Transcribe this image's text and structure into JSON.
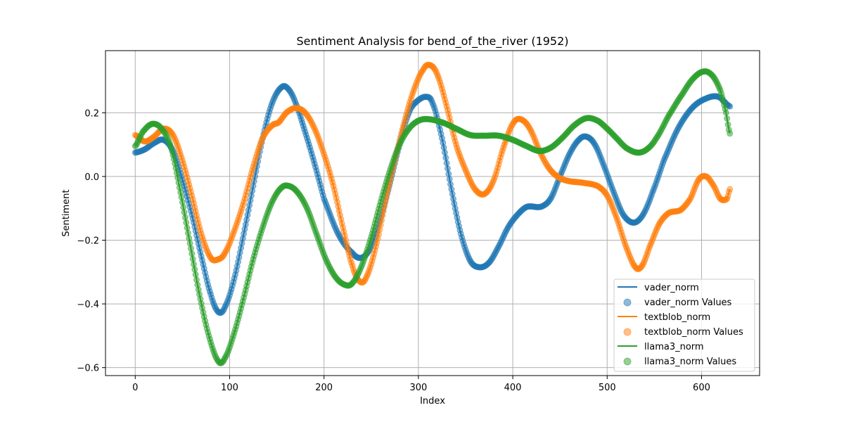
{
  "chart_data": {
    "type": "line",
    "title": "Sentiment Analysis for bend_of_the_river (1952)",
    "xlabel": "Index",
    "ylabel": "Sentiment",
    "xlim": [
      -31.5,
      661.5
    ],
    "ylim": [
      -0.625,
      0.395
    ],
    "xticks": [
      0,
      100,
      200,
      300,
      400,
      500,
      600
    ],
    "yticks": [
      -0.6,
      -0.4,
      -0.2,
      0.0,
      0.2
    ],
    "ytick_labels": [
      "−0.6",
      "−0.4",
      "−0.2",
      "0.0",
      "0.2"
    ],
    "grid": true,
    "legend_position": "lower right",
    "x_max": 630,
    "series": [
      {
        "name": "vader_norm",
        "scatter_name": "vader_norm Values",
        "color": "#1f77b4",
        "points": [
          [
            0,
            0.075
          ],
          [
            10,
            0.085
          ],
          [
            20,
            0.105
          ],
          [
            30,
            0.115
          ],
          [
            40,
            0.08
          ],
          [
            50,
            -0.01
          ],
          [
            60,
            -0.12
          ],
          [
            70,
            -0.25
          ],
          [
            80,
            -0.37
          ],
          [
            88,
            -0.425
          ],
          [
            95,
            -0.41
          ],
          [
            105,
            -0.32
          ],
          [
            115,
            -0.18
          ],
          [
            125,
            -0.03
          ],
          [
            135,
            0.12
          ],
          [
            145,
            0.23
          ],
          [
            155,
            0.28
          ],
          [
            162,
            0.275
          ],
          [
            170,
            0.23
          ],
          [
            180,
            0.14
          ],
          [
            190,
            0.04
          ],
          [
            200,
            -0.07
          ],
          [
            215,
            -0.18
          ],
          [
            230,
            -0.24
          ],
          [
            240,
            -0.255
          ],
          [
            250,
            -0.22
          ],
          [
            260,
            -0.13
          ],
          [
            270,
            -0.02
          ],
          [
            280,
            0.1
          ],
          [
            290,
            0.2
          ],
          [
            298,
            0.235
          ],
          [
            308,
            0.25
          ],
          [
            315,
            0.23
          ],
          [
            325,
            0.12
          ],
          [
            335,
            -0.04
          ],
          [
            345,
            -0.18
          ],
          [
            355,
            -0.265
          ],
          [
            365,
            -0.285
          ],
          [
            375,
            -0.27
          ],
          [
            385,
            -0.22
          ],
          [
            395,
            -0.16
          ],
          [
            405,
            -0.12
          ],
          [
            415,
            -0.095
          ],
          [
            430,
            -0.095
          ],
          [
            440,
            -0.07
          ],
          [
            450,
            0.0
          ],
          [
            460,
            0.07
          ],
          [
            470,
            0.115
          ],
          [
            478,
            0.125
          ],
          [
            487,
            0.1
          ],
          [
            497,
            0.03
          ],
          [
            507,
            -0.05
          ],
          [
            517,
            -0.12
          ],
          [
            528,
            -0.145
          ],
          [
            538,
            -0.12
          ],
          [
            548,
            -0.05
          ],
          [
            560,
            0.05
          ],
          [
            575,
            0.15
          ],
          [
            590,
            0.215
          ],
          [
            605,
            0.245
          ],
          [
            618,
            0.25
          ],
          [
            630,
            0.22
          ]
        ]
      },
      {
        "name": "textblob_norm",
        "scatter_name": "textblob_norm Values",
        "color": "#ff7f0e",
        "points": [
          [
            0,
            0.13
          ],
          [
            10,
            0.11
          ],
          [
            20,
            0.125
          ],
          [
            30,
            0.15
          ],
          [
            40,
            0.13
          ],
          [
            50,
            0.05
          ],
          [
            60,
            -0.06
          ],
          [
            70,
            -0.18
          ],
          [
            80,
            -0.255
          ],
          [
            88,
            -0.26
          ],
          [
            95,
            -0.24
          ],
          [
            105,
            -0.17
          ],
          [
            115,
            -0.08
          ],
          [
            125,
            0.03
          ],
          [
            135,
            0.12
          ],
          [
            145,
            0.16
          ],
          [
            152,
            0.17
          ],
          [
            160,
            0.2
          ],
          [
            170,
            0.215
          ],
          [
            180,
            0.2
          ],
          [
            190,
            0.15
          ],
          [
            200,
            0.07
          ],
          [
            210,
            -0.03
          ],
          [
            220,
            -0.16
          ],
          [
            230,
            -0.28
          ],
          [
            238,
            -0.33
          ],
          [
            245,
            -0.315
          ],
          [
            255,
            -0.22
          ],
          [
            265,
            -0.08
          ],
          [
            275,
            0.05
          ],
          [
            285,
            0.17
          ],
          [
            295,
            0.27
          ],
          [
            305,
            0.335
          ],
          [
            312,
            0.35
          ],
          [
            320,
            0.32
          ],
          [
            330,
            0.22
          ],
          [
            340,
            0.1
          ],
          [
            350,
            0.02
          ],
          [
            360,
            -0.04
          ],
          [
            370,
            -0.055
          ],
          [
            380,
            -0.01
          ],
          [
            390,
            0.09
          ],
          [
            400,
            0.165
          ],
          [
            408,
            0.18
          ],
          [
            418,
            0.15
          ],
          [
            430,
            0.07
          ],
          [
            440,
            0.02
          ],
          [
            450,
            -0.005
          ],
          [
            460,
            -0.015
          ],
          [
            475,
            -0.02
          ],
          [
            490,
            -0.03
          ],
          [
            500,
            -0.06
          ],
          [
            510,
            -0.13
          ],
          [
            520,
            -0.22
          ],
          [
            530,
            -0.285
          ],
          [
            537,
            -0.28
          ],
          [
            545,
            -0.22
          ],
          [
            555,
            -0.15
          ],
          [
            565,
            -0.115
          ],
          [
            578,
            -0.105
          ],
          [
            588,
            -0.07
          ],
          [
            597,
            -0.01
          ],
          [
            605,
            0.0
          ],
          [
            613,
            -0.03
          ],
          [
            620,
            -0.07
          ],
          [
            627,
            -0.07
          ],
          [
            630,
            -0.04
          ]
        ]
      },
      {
        "name": "llama3_norm",
        "scatter_name": "llama3_norm Values",
        "color": "#2ca02c",
        "points": [
          [
            0,
            0.095
          ],
          [
            8,
            0.14
          ],
          [
            18,
            0.165
          ],
          [
            28,
            0.15
          ],
          [
            38,
            0.09
          ],
          [
            48,
            -0.05
          ],
          [
            58,
            -0.21
          ],
          [
            68,
            -0.37
          ],
          [
            78,
            -0.5
          ],
          [
            88,
            -0.58
          ],
          [
            95,
            -0.57
          ],
          [
            105,
            -0.49
          ],
          [
            115,
            -0.38
          ],
          [
            125,
            -0.26
          ],
          [
            135,
            -0.16
          ],
          [
            145,
            -0.08
          ],
          [
            155,
            -0.035
          ],
          [
            163,
            -0.03
          ],
          [
            172,
            -0.05
          ],
          [
            182,
            -0.1
          ],
          [
            192,
            -0.18
          ],
          [
            202,
            -0.26
          ],
          [
            212,
            -0.315
          ],
          [
            222,
            -0.34
          ],
          [
            230,
            -0.335
          ],
          [
            240,
            -0.28
          ],
          [
            250,
            -0.19
          ],
          [
            260,
            -0.08
          ],
          [
            270,
            0.02
          ],
          [
            280,
            0.1
          ],
          [
            290,
            0.15
          ],
          [
            300,
            0.175
          ],
          [
            310,
            0.18
          ],
          [
            325,
            0.17
          ],
          [
            340,
            0.15
          ],
          [
            355,
            0.13
          ],
          [
            370,
            0.128
          ],
          [
            385,
            0.128
          ],
          [
            400,
            0.115
          ],
          [
            415,
            0.095
          ],
          [
            428,
            0.08
          ],
          [
            440,
            0.09
          ],
          [
            452,
            0.12
          ],
          [
            465,
            0.16
          ],
          [
            478,
            0.183
          ],
          [
            490,
            0.175
          ],
          [
            500,
            0.15
          ],
          [
            510,
            0.12
          ],
          [
            520,
            0.09
          ],
          [
            532,
            0.075
          ],
          [
            542,
            0.085
          ],
          [
            552,
            0.12
          ],
          [
            565,
            0.19
          ],
          [
            580,
            0.26
          ],
          [
            592,
            0.31
          ],
          [
            603,
            0.33
          ],
          [
            612,
            0.315
          ],
          [
            620,
            0.27
          ],
          [
            626,
            0.2
          ],
          [
            630,
            0.135
          ]
        ]
      }
    ]
  }
}
